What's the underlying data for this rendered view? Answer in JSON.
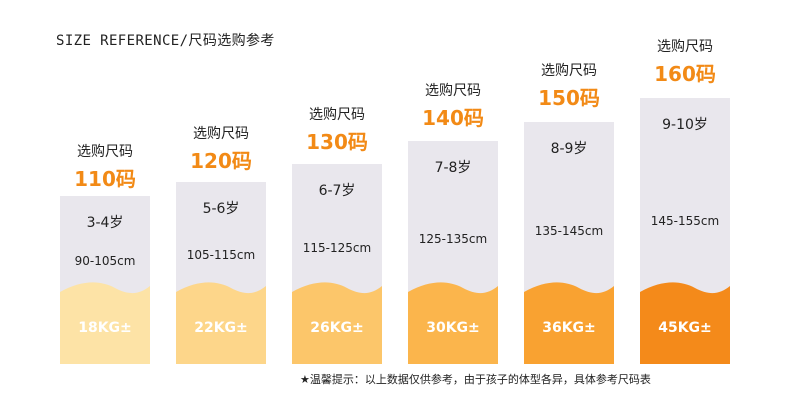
{
  "title": "SIZE REFERENCE/尺码选购参考",
  "columns": [
    {
      "heading": "选购尺码",
      "size": "110码",
      "age": "3-4岁",
      "height": "90-105cm",
      "weight": "18KG±",
      "color": "#fde3a6"
    },
    {
      "heading": "选购尺码",
      "size": "120码",
      "age": "5-6岁",
      "height": "105-115cm",
      "weight": "22KG±",
      "color": "#fdd68a"
    },
    {
      "heading": "选购尺码",
      "size": "130码",
      "age": "6-7岁",
      "height": "115-125cm",
      "weight": "26KG±",
      "color": "#fcc66a"
    },
    {
      "heading": "选购尺码",
      "size": "140码",
      "age": "7-8岁",
      "height": "125-135cm",
      "weight": "30KG±",
      "color": "#fbb54c"
    },
    {
      "heading": "选购尺码",
      "size": "150码",
      "age": "8-9岁",
      "height": "135-145cm",
      "weight": "36KG±",
      "color": "#f9a231"
    },
    {
      "heading": "选购尺码",
      "size": "160码",
      "age": "9-10岁",
      "height": "145-155cm",
      "weight": "45KG±",
      "color": "#f48a1a"
    }
  ],
  "footnote": "★温馨提示：以上数据仅供参考，由于孩子的体型各异，具体参考尺码表"
}
